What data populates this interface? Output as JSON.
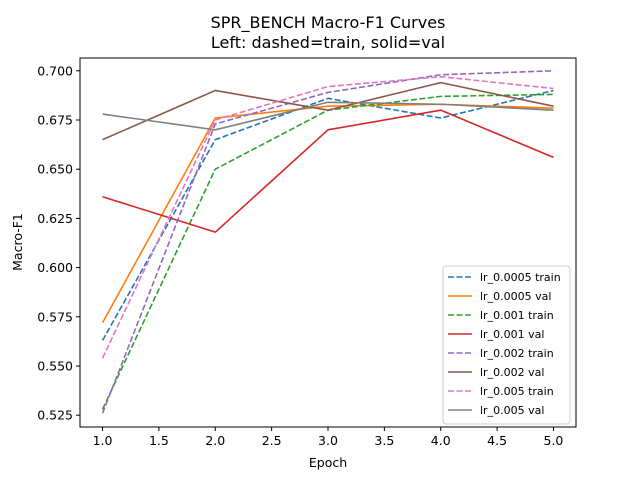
{
  "chart_data": {
    "type": "line",
    "title": "SPR_BENCH Macro-F1 Curves",
    "subtitle": "Left: dashed=train, solid=val",
    "xlabel": "Epoch",
    "ylabel": "Macro-F1",
    "xlim": [
      0.8,
      5.2
    ],
    "ylim": [
      0.519,
      0.7065
    ],
    "xticks": [
      "1.0",
      "1.5",
      "2.0",
      "2.5",
      "3.0",
      "3.5",
      "4.0",
      "4.5",
      "5.0"
    ],
    "yticks": [
      "0.525",
      "0.550",
      "0.575",
      "0.600",
      "0.625",
      "0.650",
      "0.675",
      "0.700"
    ],
    "x": [
      1,
      2,
      3,
      4,
      5
    ],
    "grid": false,
    "legend_position": "lower-right",
    "series": [
      {
        "name": "lr_0.0005 train",
        "values": [
          0.563,
          0.665,
          0.686,
          0.676,
          0.69
        ],
        "color": "#1f77b4",
        "style": "dashed"
      },
      {
        "name": "lr_0.0005 val",
        "values": [
          0.572,
          0.676,
          0.682,
          0.683,
          0.681
        ],
        "color": "#ff7f0e",
        "style": "solid"
      },
      {
        "name": "lr_0.001 train",
        "values": [
          0.528,
          0.65,
          0.68,
          0.687,
          0.688
        ],
        "color": "#2ca02c",
        "style": "dashed"
      },
      {
        "name": "lr_0.001 val",
        "values": [
          0.636,
          0.618,
          0.67,
          0.68,
          0.656
        ],
        "color": "#d62728",
        "style": "solid"
      },
      {
        "name": "lr_0.002 train",
        "values": [
          0.526,
          0.673,
          0.689,
          0.698,
          0.7
        ],
        "color": "#9467bd",
        "style": "dashed"
      },
      {
        "name": "lr_0.002 val",
        "values": [
          0.665,
          0.69,
          0.68,
          0.694,
          0.682
        ],
        "color": "#8c564b",
        "style": "solid"
      },
      {
        "name": "lr_0.005 train",
        "values": [
          0.554,
          0.675,
          0.692,
          0.697,
          0.691
        ],
        "color": "#e377c2",
        "style": "dashed"
      },
      {
        "name": "lr_0.005 val",
        "values": [
          0.678,
          0.67,
          0.684,
          0.683,
          0.68
        ],
        "color": "#7f7f7f",
        "style": "solid"
      }
    ]
  }
}
